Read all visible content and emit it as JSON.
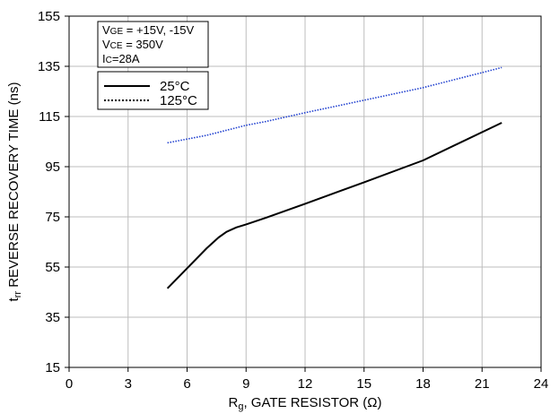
{
  "chart_data": {
    "type": "line",
    "title": "",
    "xlabel": {
      "main": "R",
      "sub": "g",
      "rest": ", GATE RESISTOR (Ω)"
    },
    "ylabel": {
      "main": "t",
      "sub": "rr",
      "rest": " REVERSE RECOVERY TIME (ns)"
    },
    "xlim": [
      0,
      24
    ],
    "ylim": [
      15,
      155
    ],
    "xticks": [
      "0",
      "3",
      "6",
      "9",
      "12",
      "15",
      "18",
      "21",
      "24"
    ],
    "yticks": [
      "15",
      "35",
      "55",
      "75",
      "95",
      "115",
      "135",
      "155"
    ],
    "grid": true,
    "conditions": [
      {
        "main": "V",
        "sub": "GE",
        "rest": " = +15V, -15V"
      },
      {
        "main": "V",
        "sub": "CE",
        "rest": " = 350V"
      },
      {
        "main": "I",
        "sub": "C",
        "rest": "=28A"
      }
    ],
    "legend_position": "top-left",
    "series": [
      {
        "name": "25°C",
        "style": "solid",
        "color": "#000000",
        "x": [
          5,
          6,
          7,
          7.6,
          8,
          8.5,
          9,
          10,
          12,
          15,
          18,
          22
        ],
        "y": [
          46.5,
          54.5,
          62.5,
          66.8,
          69,
          70.8,
          72,
          74.6,
          80.2,
          88.8,
          97.5,
          112.5
        ]
      },
      {
        "name": "125°C",
        "style": "dotted",
        "color": "#1f3fcf",
        "x": [
          5,
          7,
          8,
          9,
          10,
          12,
          15,
          18,
          22
        ],
        "y": [
          104.5,
          107.5,
          109.5,
          111.5,
          113,
          116.5,
          121.5,
          126.5,
          134.5
        ]
      }
    ]
  }
}
